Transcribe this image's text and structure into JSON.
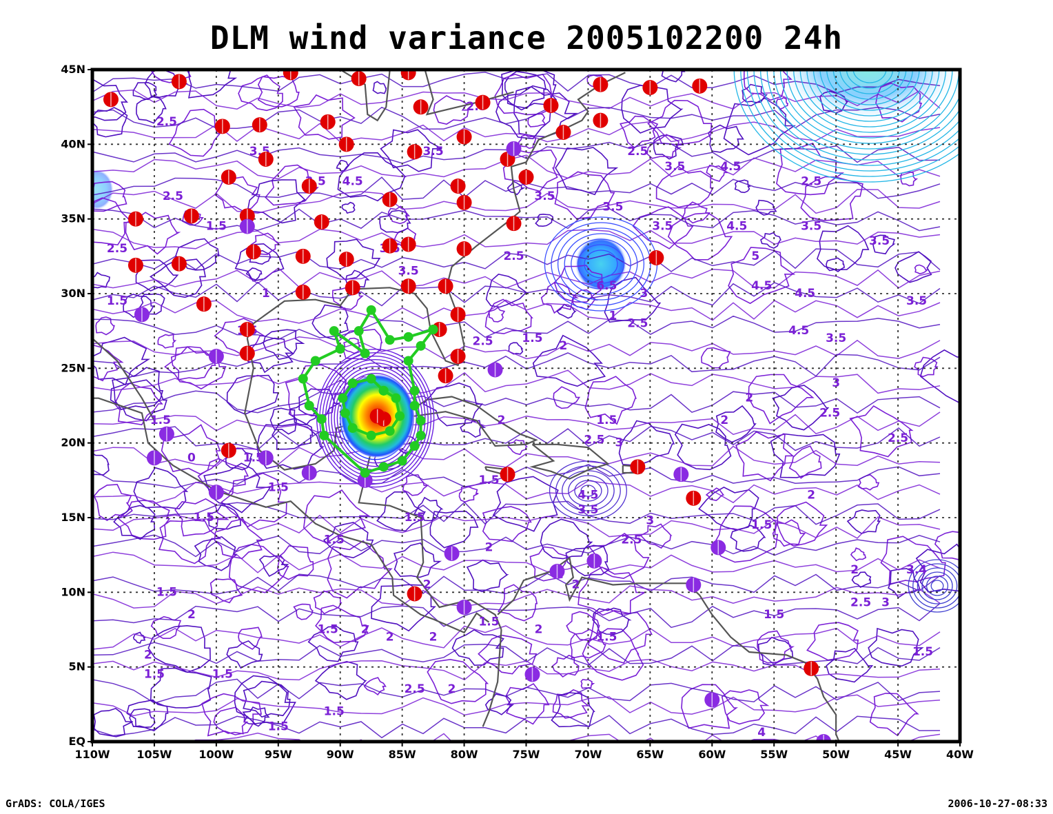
{
  "title": "DLM wind variance 2005102200 24h",
  "footer": {
    "left": "GrADS: COLA/IGES",
    "right": "2006-10-27-08:33"
  },
  "map": {
    "lon_range": [
      -110,
      -40
    ],
    "lat_range": [
      0,
      45
    ],
    "lon_labels": [
      "110W",
      "105W",
      "100W",
      "95W",
      "90W",
      "85W",
      "80W",
      "75W",
      "70W",
      "65W",
      "60W",
      "55W",
      "50W",
      "45W",
      "40W"
    ],
    "lat_labels": [
      "EQ",
      "5N",
      "10N",
      "15N",
      "20N",
      "25N",
      "30N",
      "35N",
      "40N",
      "45N"
    ],
    "grid": "dotted"
  },
  "colors": {
    "frame": "#000000",
    "contour": "#7a1fd6",
    "contour_dark": "#5010c0",
    "coast": "#555555",
    "red_marker": "#e00000",
    "purple_marker": "#8a2be2",
    "track": "#22cc22",
    "high": "#1f8fff"
  },
  "contour_labels": [
    {
      "text": "2.5",
      "lon": -104,
      "lat": 41.5
    },
    {
      "text": "3.5",
      "lon": -96.5,
      "lat": 39.5
    },
    {
      "text": "4.5",
      "lon": -89,
      "lat": 37.5
    },
    {
      "text": "2.5",
      "lon": -103.5,
      "lat": 36.5
    },
    {
      "text": "3.5",
      "lon": -92,
      "lat": 37.5
    },
    {
      "text": "1.5",
      "lon": -100,
      "lat": 34.5
    },
    {
      "text": "2.5",
      "lon": -108,
      "lat": 33
    },
    {
      "text": "1.5",
      "lon": -108,
      "lat": 29.5
    },
    {
      "text": "1",
      "lon": -96,
      "lat": 30
    },
    {
      "text": "1.5",
      "lon": -97.5,
      "lat": 27.5
    },
    {
      "text": "3.5",
      "lon": -86,
      "lat": 33
    },
    {
      "text": "3.5",
      "lon": -84.5,
      "lat": 31.5
    },
    {
      "text": "2.5",
      "lon": -78.5,
      "lat": 26.8
    },
    {
      "text": "1.5",
      "lon": -74.5,
      "lat": 27
    },
    {
      "text": "2.5",
      "lon": -76,
      "lat": 32.5
    },
    {
      "text": "3.5",
      "lon": -73.5,
      "lat": 36.5
    },
    {
      "text": "3.5",
      "lon": -82.5,
      "lat": 39.5
    },
    {
      "text": "2.5",
      "lon": -79,
      "lat": 42.5
    },
    {
      "text": "3.5",
      "lon": -68,
      "lat": 35.8
    },
    {
      "text": "2.5",
      "lon": -66,
      "lat": 39.5
    },
    {
      "text": "3.5",
      "lon": -63,
      "lat": 38.5
    },
    {
      "text": "4.5",
      "lon": -58.5,
      "lat": 38.5
    },
    {
      "text": "2.5",
      "lon": -52,
      "lat": 37.5
    },
    {
      "text": "3.5",
      "lon": -64,
      "lat": 34.5
    },
    {
      "text": "4.5",
      "lon": -58,
      "lat": 34.5
    },
    {
      "text": "3.5",
      "lon": -52,
      "lat": 34.5
    },
    {
      "text": "5",
      "lon": -56.5,
      "lat": 32.5
    },
    {
      "text": "3.5",
      "lon": -46.5,
      "lat": 33.5
    },
    {
      "text": "4.5",
      "lon": -56,
      "lat": 30.5
    },
    {
      "text": "4.5",
      "lon": -52.5,
      "lat": 30
    },
    {
      "text": "3.5",
      "lon": -43.5,
      "lat": 29.5
    },
    {
      "text": "4.5",
      "lon": -53,
      "lat": 27.5
    },
    {
      "text": "3.5",
      "lon": -50,
      "lat": 27
    },
    {
      "text": "2.5",
      "lon": -66,
      "lat": 28
    },
    {
      "text": "1",
      "lon": -68,
      "lat": 28.5
    },
    {
      "text": "2",
      "lon": -72,
      "lat": 26.5
    },
    {
      "text": "6.5",
      "lon": -68.5,
      "lat": 30.5
    },
    {
      "text": "3",
      "lon": -65.5,
      "lat": 30
    },
    {
      "text": "1.5",
      "lon": -68.5,
      "lat": 21.5
    },
    {
      "text": "2",
      "lon": -59,
      "lat": 21.5
    },
    {
      "text": "2",
      "lon": -57,
      "lat": 23
    },
    {
      "text": "3",
      "lon": -50,
      "lat": 24
    },
    {
      "text": "2.5",
      "lon": -50.5,
      "lat": 22
    },
    {
      "text": "2.5",
      "lon": -45,
      "lat": 20.3
    },
    {
      "text": "2.5",
      "lon": -69.5,
      "lat": 20.2
    },
    {
      "text": "3",
      "lon": -67.5,
      "lat": 20
    },
    {
      "text": "4.5",
      "lon": -70,
      "lat": 16.5
    },
    {
      "text": "3.5",
      "lon": -70,
      "lat": 15.5
    },
    {
      "text": "3",
      "lon": -65,
      "lat": 14.8
    },
    {
      "text": "2.5",
      "lon": -66.5,
      "lat": 13.5
    },
    {
      "text": "1.5",
      "lon": -56,
      "lat": 14.5
    },
    {
      "text": "2",
      "lon": -52,
      "lat": 16.5
    },
    {
      "text": "2",
      "lon": -48.5,
      "lat": 11.5
    },
    {
      "text": "2.5",
      "lon": -48,
      "lat": 9.3
    },
    {
      "text": "3",
      "lon": -46,
      "lat": 9.3
    },
    {
      "text": "3.4",
      "lon": -43.5,
      "lat": 11.5
    },
    {
      "text": "1.5",
      "lon": -55,
      "lat": 8.5
    },
    {
      "text": "1.5",
      "lon": -43,
      "lat": 6
    },
    {
      "text": "1.5",
      "lon": -68.5,
      "lat": 7
    },
    {
      "text": "2",
      "lon": -71,
      "lat": 10.5
    },
    {
      "text": "2",
      "lon": -74,
      "lat": 7.5
    },
    {
      "text": "1.5",
      "lon": -78,
      "lat": 17.5
    },
    {
      "text": "1.5",
      "lon": -84,
      "lat": 15
    },
    {
      "text": "2",
      "lon": -77,
      "lat": 21.5
    },
    {
      "text": "2",
      "lon": -78,
      "lat": 13
    },
    {
      "text": "2",
      "lon": -83,
      "lat": 10.5
    },
    {
      "text": "1.5",
      "lon": -104.5,
      "lat": 21.5
    },
    {
      "text": "0",
      "lon": -102,
      "lat": 19
    },
    {
      "text": "1.5",
      "lon": -97,
      "lat": 19
    },
    {
      "text": "1.5",
      "lon": -95,
      "lat": 17
    },
    {
      "text": "1.5",
      "lon": -101,
      "lat": 15
    },
    {
      "text": "1.5",
      "lon": -90.5,
      "lat": 13.5
    },
    {
      "text": "1.5",
      "lon": -104,
      "lat": 10
    },
    {
      "text": "2",
      "lon": -102,
      "lat": 8.5
    },
    {
      "text": "1.5",
      "lon": -91,
      "lat": 7.5
    },
    {
      "text": "2",
      "lon": -88,
      "lat": 7.5
    },
    {
      "text": "2",
      "lon": -86,
      "lat": 7
    },
    {
      "text": "2.5",
      "lon": -84,
      "lat": 3.5
    },
    {
      "text": "2",
      "lon": -81,
      "lat": 3.5
    },
    {
      "text": "1.5",
      "lon": -90.5,
      "lat": 2
    },
    {
      "text": "1.5",
      "lon": -95,
      "lat": 1
    },
    {
      "text": "1.5",
      "lon": -105,
      "lat": 4.5
    },
    {
      "text": "2",
      "lon": -105.5,
      "lat": 5.8
    },
    {
      "text": "1.5",
      "lon": -99.5,
      "lat": 4.5
    },
    {
      "text": "4",
      "lon": -56,
      "lat": 0.6
    },
    {
      "text": "2",
      "lon": -82.5,
      "lat": 7
    },
    {
      "text": "1.5",
      "lon": -78,
      "lat": 8
    }
  ],
  "markers": {
    "red": [
      [
        -108.5,
        43
      ],
      [
        -103,
        44.2
      ],
      [
        -99.5,
        41.2
      ],
      [
        -96.5,
        41.3
      ],
      [
        -94,
        44.8
      ],
      [
        -88.5,
        44.4
      ],
      [
        -84.5,
        44.8
      ],
      [
        -83.5,
        42.5
      ],
      [
        -78.5,
        42.8
      ],
      [
        -73,
        42.6
      ],
      [
        -69,
        44
      ],
      [
        -65,
        43.8
      ],
      [
        -61,
        43.9
      ],
      [
        -69,
        41.6
      ],
      [
        -72,
        40.8
      ],
      [
        -91,
        41.5
      ],
      [
        -89.5,
        40
      ],
      [
        -84,
        39.5
      ],
      [
        -80,
        40.5
      ],
      [
        -76.5,
        39
      ],
      [
        -75,
        37.8
      ],
      [
        -96,
        39
      ],
      [
        -92.5,
        37.2
      ],
      [
        -99,
        37.8
      ],
      [
        -86,
        36.3
      ],
      [
        -80.5,
        37.2
      ],
      [
        -80,
        36.1
      ],
      [
        -106.5,
        35
      ],
      [
        -102,
        35.2
      ],
      [
        -97.5,
        35.2
      ],
      [
        -91.5,
        34.8
      ],
      [
        -76,
        34.7
      ],
      [
        -86,
        33.2
      ],
      [
        -84.5,
        33.3
      ],
      [
        -80,
        33
      ],
      [
        -106.5,
        31.9
      ],
      [
        -103,
        32
      ],
      [
        -97,
        32.8
      ],
      [
        -93,
        32.5
      ],
      [
        -89.5,
        32.3
      ],
      [
        -93,
        30.1
      ],
      [
        -89,
        30.4
      ],
      [
        -84.5,
        30.5
      ],
      [
        -81.5,
        30.5
      ],
      [
        -101,
        29.3
      ],
      [
        -80.5,
        28.6
      ],
      [
        -82,
        27.6
      ],
      [
        -97.5,
        27.6
      ],
      [
        -97.5,
        26
      ],
      [
        -80.5,
        25.8
      ],
      [
        -81.5,
        24.5
      ],
      [
        -99,
        19.5
      ],
      [
        -86.5,
        21.6
      ],
      [
        -76.5,
        17.9
      ],
      [
        -66,
        18.4
      ],
      [
        -61.5,
        16.3
      ],
      [
        -84,
        9.9
      ],
      [
        -52,
        4.9
      ],
      [
        -64.5,
        32.4
      ]
    ],
    "purple": [
      [
        -97.5,
        34.5
      ],
      [
        -106,
        28.6
      ],
      [
        -100,
        25.8
      ],
      [
        -104,
        20.6
      ],
      [
        -105,
        19
      ],
      [
        -96,
        19
      ],
      [
        -92.5,
        18
      ],
      [
        -88,
        17.5
      ],
      [
        -100,
        16.7
      ],
      [
        -77.5,
        24.9
      ],
      [
        -76,
        39.7
      ],
      [
        -81,
        12.6
      ],
      [
        -72.5,
        11.4
      ],
      [
        -69.5,
        12.1
      ],
      [
        -62.5,
        17.9
      ],
      [
        -59.5,
        13
      ],
      [
        -61.5,
        10.5
      ],
      [
        -80,
        9
      ],
      [
        -74.5,
        4.5
      ],
      [
        -60,
        2.8
      ],
      [
        -51,
        0
      ]
    ]
  },
  "track": [
    [
      -82.5,
      27.6
    ],
    [
      -84.5,
      27.1
    ],
    [
      -86,
      26.9
    ],
    [
      -87.5,
      28.9
    ],
    [
      -88.5,
      27.5
    ],
    [
      -88,
      26
    ],
    [
      -90.5,
      27.5
    ],
    [
      -90,
      26.3
    ],
    [
      -92,
      25.5
    ],
    [
      -93,
      24.3
    ],
    [
      -92.5,
      22.5
    ],
    [
      -91.5,
      21.6
    ],
    [
      -91.3,
      20.5
    ],
    [
      -88,
      18
    ],
    [
      -86.5,
      18.4
    ],
    [
      -85,
      18.8
    ],
    [
      -84,
      19.8
    ],
    [
      -83.5,
      20.5
    ],
    [
      -83.5,
      21.5
    ],
    [
      -84,
      22.5
    ],
    [
      -84,
      23.5
    ],
    [
      -84.5,
      25.5
    ],
    [
      -83.5,
      26.5
    ],
    [
      -82.5,
      27.6
    ]
  ],
  "inner_track": [
    [
      -86.5,
      23.5
    ],
    [
      -87.5,
      24.3
    ],
    [
      -89,
      24
    ],
    [
      -89.8,
      23
    ],
    [
      -89.6,
      22
    ],
    [
      -89,
      21
    ],
    [
      -87.5,
      20.5
    ],
    [
      -86,
      20.8
    ],
    [
      -85.2,
      21.8
    ],
    [
      -85.5,
      23
    ],
    [
      -86.5,
      23.5
    ]
  ],
  "hurricane_center": [
    -87,
    21.8
  ]
}
